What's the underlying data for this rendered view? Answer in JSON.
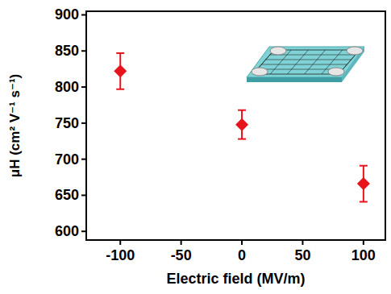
{
  "chart_data": {
    "type": "scatter",
    "x_label": "Electric field (MV/m)",
    "y_label": "μH (cm² V⁻¹ s⁻¹)",
    "x": [
      -100,
      0,
      100
    ],
    "values": [
      822,
      748,
      666
    ],
    "errors": [
      25,
      20,
      25
    ],
    "color": "#e8141c",
    "marker": "diamond",
    "xlim": [
      -128,
      118
    ],
    "xticks": [
      -100,
      -50,
      0,
      50,
      100
    ],
    "ylim": [
      588,
      905
    ],
    "yticks": [
      600,
      650,
      700,
      750,
      800,
      850,
      900
    ],
    "grid": false
  }
}
